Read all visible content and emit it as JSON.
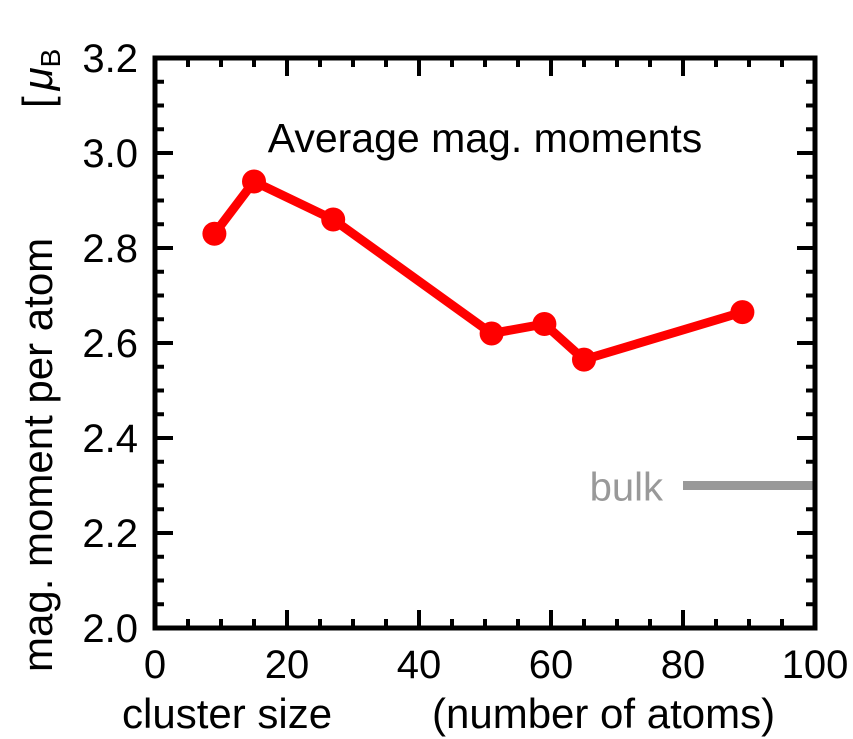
{
  "chart_data": {
    "type": "line",
    "title": "Average mag. moments",
    "xlabel": "cluster size",
    "xlabel_note": "(number of atoms)",
    "ylabel": "mag. moment per atom",
    "yunit_open": "[",
    "yunit_symbol": "μ",
    "yunit_sub": "B",
    "xlim": [
      0,
      100
    ],
    "ylim": [
      2.0,
      3.2
    ],
    "xticks": [
      0,
      20,
      40,
      60,
      80,
      100
    ],
    "yticks": [
      2.0,
      2.2,
      2.4,
      2.6,
      2.8,
      3.0,
      3.2
    ],
    "xtick_labels": [
      "0",
      "20",
      "40",
      "60",
      "80",
      "100"
    ],
    "ytick_labels": [
      "2.0",
      "2.2",
      "2.4",
      "2.6",
      "2.8",
      "3.0",
      "3.2"
    ],
    "x_minor_step": 5,
    "y_minor_step": 0.05,
    "grid": false,
    "series": [
      {
        "color": "#ff0000",
        "x": [
          9,
          15,
          27,
          51,
          59,
          65,
          89
        ],
        "y": [
          2.83,
          2.94,
          2.86,
          2.62,
          2.64,
          2.565,
          2.665
        ]
      }
    ],
    "reference_line": {
      "label": "bulk",
      "y": 2.3,
      "x_start": 80,
      "x_end": 100,
      "color": "#999999"
    }
  }
}
